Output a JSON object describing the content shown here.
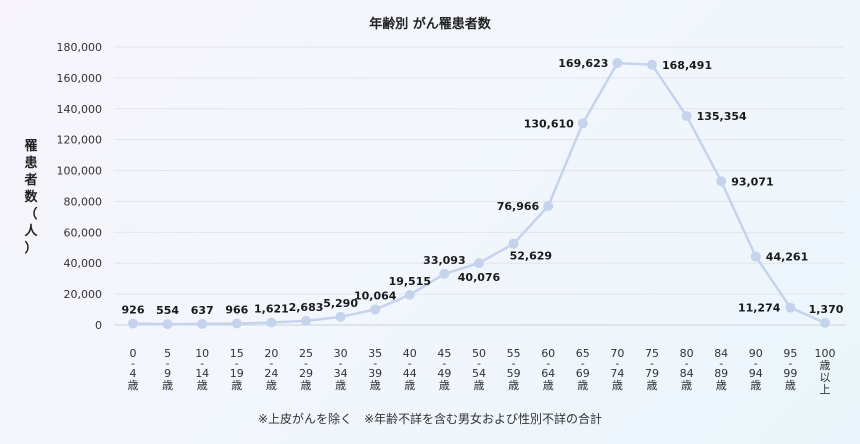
{
  "chart_data": {
    "type": "line",
    "title": "年齢別 がん罹患者数",
    "ylabel": "罹患者数（人）",
    "xlabel": "",
    "ylim": [
      0,
      180000
    ],
    "y_ticks": [
      "0",
      "20,000",
      "40,000",
      "60,000",
      "80,000",
      "100,000",
      "120,000",
      "140,000",
      "160,000",
      "180,000"
    ],
    "grid": true,
    "legend": "none",
    "line_color": "#c5d4ec",
    "point_color": "#c5d4ec",
    "categories": [
      "0-4歳",
      "5-9歳",
      "10-14歳",
      "15-19歳",
      "20-24歳",
      "25-29歳",
      "30-34歳",
      "35-39歳",
      "40-44歳",
      "45-49歳",
      "50-54歳",
      "55-59歳",
      "60-64歳",
      "65-69歳",
      "70-74歳",
      "75-79歳",
      "80-84歳",
      "84-89歳",
      "90-94歳",
      "95-99歳",
      "100歳以上"
    ],
    "x_tick_lines": [
      [
        "0",
        "-",
        "4",
        "歳"
      ],
      [
        "5",
        "-",
        "9",
        "歳"
      ],
      [
        "10",
        "-",
        "14",
        "歳"
      ],
      [
        "15",
        "-",
        "19",
        "歳"
      ],
      [
        "20",
        "-",
        "24",
        "歳"
      ],
      [
        "25",
        "-",
        "29",
        "歳"
      ],
      [
        "30",
        "-",
        "34",
        "歳"
      ],
      [
        "35",
        "-",
        "39",
        "歳"
      ],
      [
        "40",
        "-",
        "44",
        "歳"
      ],
      [
        "45",
        "-",
        "49",
        "歳"
      ],
      [
        "50",
        "-",
        "54",
        "歳"
      ],
      [
        "55",
        "-",
        "59",
        "歳"
      ],
      [
        "60",
        "-",
        "64",
        "歳"
      ],
      [
        "65",
        "-",
        "69",
        "歳"
      ],
      [
        "70",
        "-",
        "74",
        "歳"
      ],
      [
        "75",
        "-",
        "79",
        "歳"
      ],
      [
        "80",
        "-",
        "84",
        "歳"
      ],
      [
        "84",
        "-",
        "89",
        "歳"
      ],
      [
        "90",
        "-",
        "94",
        "歳"
      ],
      [
        "95",
        "-",
        "99",
        "歳"
      ],
      [
        "100",
        "歳",
        "以",
        "上"
      ]
    ],
    "values": [
      926,
      554,
      637,
      966,
      1621,
      2683,
      5290,
      10064,
      19515,
      33093,
      40076,
      52629,
      76966,
      130610,
      169623,
      168491,
      135354,
      93071,
      44261,
      11274,
      1370
    ],
    "data_labels": [
      "926",
      "554",
      "637",
      "966",
      "1,621",
      "2,683",
      "5,290",
      "10,064",
      "19,515",
      "33,093",
      "40,076",
      "52,629",
      "76,966",
      "130,610",
      "169,623",
      "168,491",
      "135,354",
      "93,071",
      "44,261",
      "11,274",
      "1,370"
    ]
  },
  "footnote": "※上皮がんを除く　※年齢不詳を含む男女および性別不詳の合計"
}
